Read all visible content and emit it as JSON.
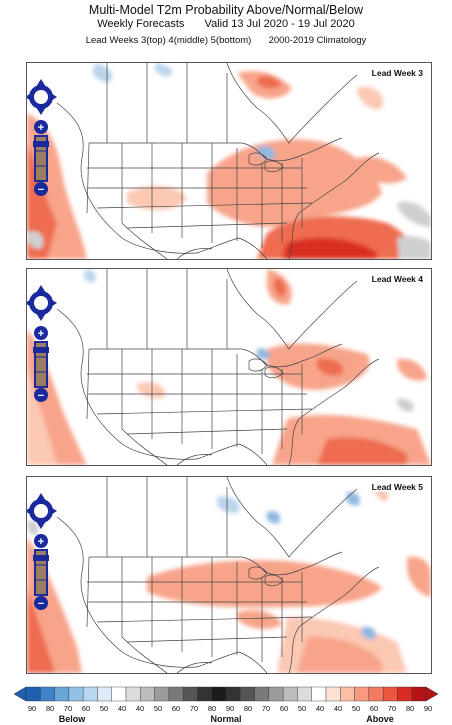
{
  "header": {
    "title": "Multi-Model T2m Probability Above/Normal/Below",
    "subtitle_left": "Weekly Forecasts",
    "subtitle_right": "Valid 13 Jul 2020 - 19 Jul 2020",
    "leads_note": "Lead Weeks 3(top) 4(middle) 5(bottom)",
    "climatology": "2000-2019 Climatology"
  },
  "panels": [
    {
      "label": "Lead Week 3"
    },
    {
      "label": "Lead Week 4"
    },
    {
      "label": "Lead Week 5"
    }
  ],
  "nav_controls": {
    "pan_icon": "pan-arrows-icon",
    "zoom_in_icon": "zoom-in-icon",
    "zoom_out_icon": "zoom-out-icon",
    "zoom_in_symbol": "+",
    "zoom_out_symbol": "−"
  },
  "colorbar": {
    "ticks": [
      "90",
      "80",
      "70",
      "60",
      "50",
      "40",
      "40",
      "50",
      "60",
      "70",
      "80",
      "90",
      "80",
      "70",
      "60",
      "50",
      "40",
      "40",
      "50",
      "60",
      "70",
      "80",
      "90"
    ],
    "categories": {
      "below": "Below",
      "normal": "Normal",
      "above": "Above"
    },
    "colors": [
      "#1f5fb0",
      "#3f83c8",
      "#6aa5d9",
      "#92c1e6",
      "#b7d6ef",
      "#dcebf6",
      "#ffffff",
      "#dcdcdc",
      "#bdbdbd",
      "#9c9c9c",
      "#7a7a7a",
      "#555555",
      "#333333",
      "#1c1c1c",
      "#333333",
      "#555555",
      "#7a7a7a",
      "#9c9c9c",
      "#bdbdbd",
      "#dcdcdc",
      "#ffffff",
      "#fde0d6",
      "#fbbfa8",
      "#f89a80",
      "#f47a60",
      "#ec5540",
      "#d92d24",
      "#b51414"
    ]
  },
  "colors": {
    "above_light": "#fbc8b4",
    "above_mid": "#f7a48a",
    "above_strong": "#ee6c50",
    "below_light": "#b9d4ec",
    "below_mid": "#8fb8e0",
    "normal_gray": "#cfcfcf",
    "nav_blue": "#1a2a9c"
  }
}
